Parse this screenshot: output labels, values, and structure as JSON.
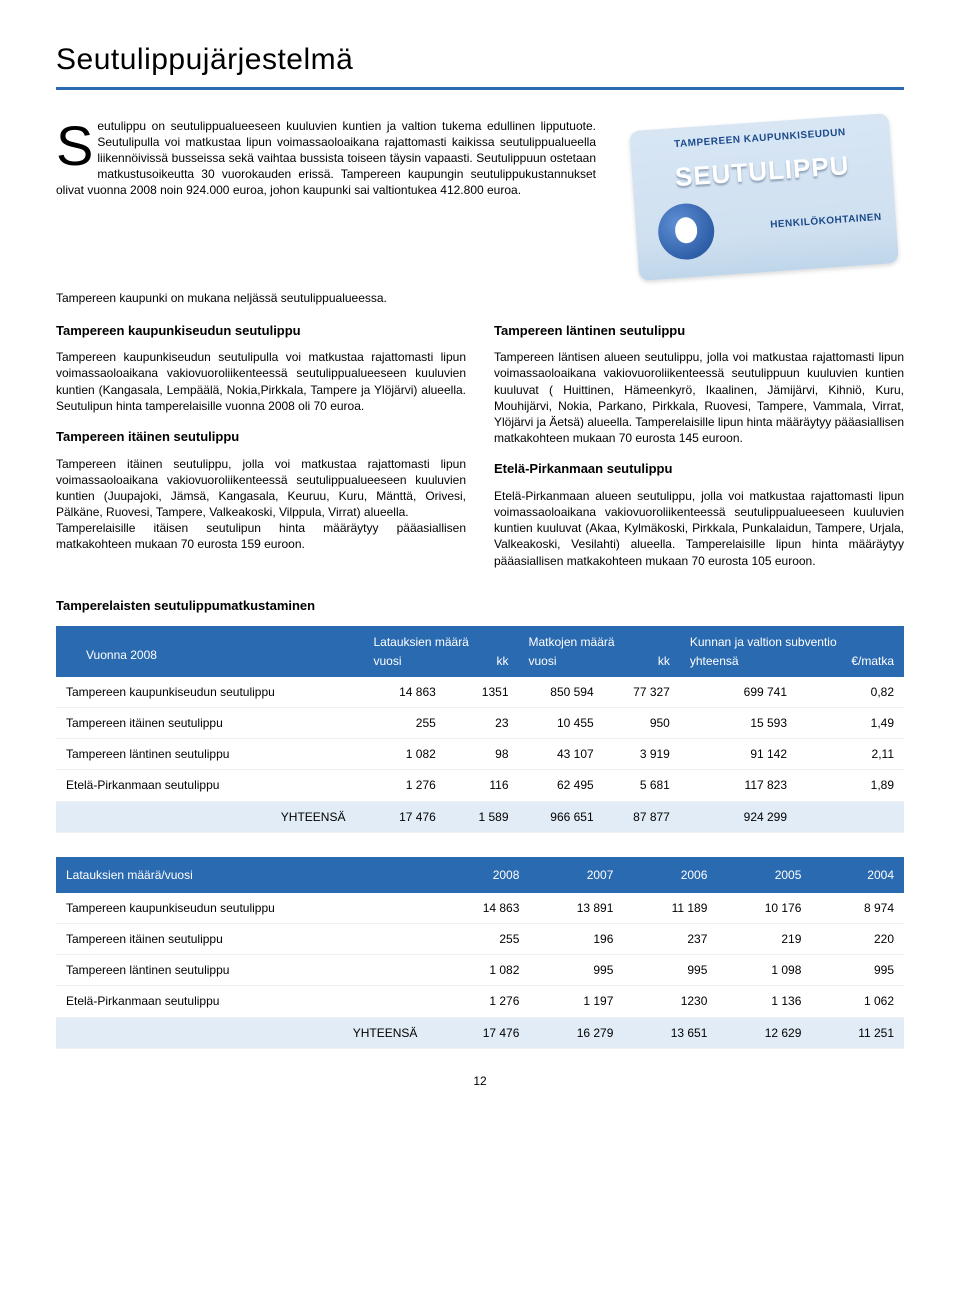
{
  "title": "Seutulippujärjestelmä",
  "intro": {
    "dropcap": "S",
    "text": "eutulippu on seutulippualueeseen kuuluvien kuntien ja valtion tukema edullinen lipputuote. Seutulipulla voi matkustaa lipun voimassaoloaikana rajattomasti kaikissa seutulippualueella liikennöivissä busseissa sekä vaihtaa bussista toiseen täysin vapaasti. Seutulippuun ostetaan matkustusoikeutta 30 vuorokauden erissä. Tampereen kaupungin seutulippukustannukset olivat vuonna 2008 noin 924.000 euroa, johon kaupunki sai valtiontukea 412.800 euroa."
  },
  "card": {
    "top": "TAMPEREEN KAUPUNKISEUDUN",
    "big": "SEUTULIPPU",
    "sub": "HENKILÖKOHTAINEN"
  },
  "mid_line": "Tampereen kaupunki on mukana neljässä seutulippualueessa.",
  "left": {
    "h1": "Tampereen kaupunkiseudun seutulippu",
    "p1": "Tampereen kaupunkiseudun seutulipulla voi matkustaa rajattomasti lipun voimassaoloaikana vakiovuoroliikenteessä seutulippualueeseen kuuluvien kuntien (Kangasala, Lempäälä, Nokia,Pirkkala, Tampere ja Ylöjärvi) alueella. Seutulipun hinta tamperelaisille vuonna 2008  oli 70 euroa.",
    "h2": "Tampereen itäinen seutulippu",
    "p2": "Tampereen itäinen seutulippu, jolla voi matkustaa rajattomasti lipun voimassaoloaikana vakiovuoroliikenteessä seutulippualueeseen kuuluvien kuntien (Juupajoki, Jämsä, Kangasala, Keuruu, Kuru, Mänttä, Orivesi, Pälkäne, Ruovesi, Tampere, Valkeakoski, Vilppula, Virrat) alueella.",
    "p2b": "Tamperelaisille itäisen seutulipun hinta määräytyy pääasiallisen matkakohteen mukaan 70 eurosta 159 euroon."
  },
  "right": {
    "h1": "Tampereen läntinen seutulippu",
    "p1": "Tampereen läntisen alueen seutulippu, jolla voi matkustaa rajattomasti lipun voimassaoloaikana vakiovuoroliikenteessä seutulippuun kuuluvien kuntien kuuluvat ( Huittinen, Hämeenkyrö, Ikaalinen, Jämijärvi, Kihniö, Kuru, Mouhijärvi, Nokia, Parkano, Pirkkala,  Ruovesi, Tampere, Vammala, Virrat, Ylöjärvi ja Äetsä) alueella. Tamperelaisille lipun hinta määräytyy pääasiallisen matkakohteen mukaan 70 eurosta 145 euroon.",
    "h2": "Etelä-Pirkanmaan seutulippu",
    "p2": "Etelä-Pirkanmaan alueen seutulippu, jolla voi matkustaa rajattomasti lipun voimassaoloaikana vakiovuoroliikenteessä seutulippualueeseen kuuluvien kuntien kuuluvat  (Akaa, Kylmäkoski, Pirkkala, Punkalaidun, Tampere, Urjala, Valkeakoski, Vesilahti) alueella. Tamperelaisille lipun hinta määräytyy pääasiallisen matkakohteen mukaan 70 eurosta 105 euroon."
  },
  "section_h": "Tamperelaisten seutulippumatkustaminen",
  "table1": {
    "header_left": "Vuonna 2008",
    "groups": [
      "Latauksien määrä",
      "Matkojen määrä",
      "Kunnan ja valtion subventio"
    ],
    "subs": [
      "vuosi",
      "kk",
      "vuosi",
      "kk",
      "yhteensä",
      "€/matka"
    ],
    "rows": [
      [
        "Tampereen kaupunkiseudun seutulippu",
        "14 863",
        "1351",
        "850 594",
        "77 327",
        "699 741",
        "0,82"
      ],
      [
        "Tampereen itäinen seutulippu",
        "255",
        "23",
        "10 455",
        "950",
        "15 593",
        "1,49"
      ],
      [
        "Tampereen läntinen seutulippu",
        "1 082",
        "98",
        "43 107",
        "3 919",
        "91 142",
        "2,11"
      ],
      [
        "Etelä-Pirkanmaan seutulippu",
        "1 276",
        "116",
        "62 495",
        "5 681",
        "117 823",
        "1,89"
      ]
    ],
    "total_label": "YHTEENSÄ",
    "total": [
      "17 476",
      "1 589",
      "966 651",
      "87 877",
      "924 299",
      ""
    ]
  },
  "table2": {
    "header_left": "Latauksien määrä/vuosi",
    "years": [
      "2008",
      "2007",
      "2006",
      "2005",
      "2004"
    ],
    "rows": [
      [
        "Tampereen kaupunkiseudun seutulippu",
        "14 863",
        "13 891",
        "11 189",
        "10 176",
        "8 974"
      ],
      [
        "Tampereen itäinen seutulippu",
        "255",
        "196",
        "237",
        "219",
        "220"
      ],
      [
        "Tampereen läntinen seutulippu",
        "1 082",
        "995",
        "995",
        "1 098",
        "995"
      ],
      [
        "Etelä-Pirkanmaan seutulippu",
        "1 276",
        "1 197",
        "1230",
        "1 136",
        "1 062"
      ]
    ],
    "total_label": "YHTEENSÄ",
    "total": [
      "17 476",
      "16 279",
      "13 651",
      "12 629",
      "11 251"
    ]
  },
  "page_number": "12"
}
